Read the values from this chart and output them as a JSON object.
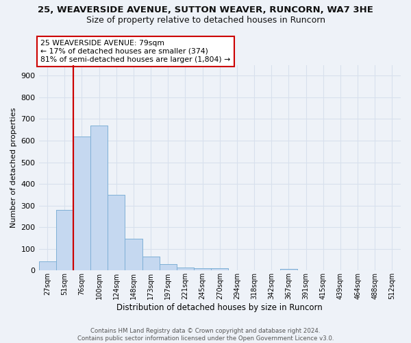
{
  "title_line1": "25, WEAVERSIDE AVENUE, SUTTON WEAVER, RUNCORN, WA7 3HE",
  "title_line2": "Size of property relative to detached houses in Runcorn",
  "xlabel": "Distribution of detached houses by size in Runcorn",
  "ylabel": "Number of detached properties",
  "bar_color": "#c5d8f0",
  "bar_edge_color": "#7aadd4",
  "property_line_color": "#cc0000",
  "annotation_text": "25 WEAVERSIDE AVENUE: 79sqm\n← 17% of detached houses are smaller (374)\n81% of semi-detached houses are larger (1,804) →",
  "annotation_box_color": "white",
  "annotation_border_color": "#cc0000",
  "categories": [
    "27sqm",
    "51sqm",
    "76sqm",
    "100sqm",
    "124sqm",
    "148sqm",
    "173sqm",
    "197sqm",
    "221sqm",
    "245sqm",
    "270sqm",
    "294sqm",
    "318sqm",
    "342sqm",
    "367sqm",
    "391sqm",
    "415sqm",
    "439sqm",
    "464sqm",
    "488sqm",
    "512sqm"
  ],
  "values": [
    42,
    280,
    620,
    670,
    348,
    148,
    65,
    28,
    14,
    12,
    10,
    0,
    0,
    0,
    8,
    0,
    0,
    0,
    0,
    0,
    0
  ],
  "ylim": [
    0,
    950
  ],
  "yticks": [
    0,
    100,
    200,
    300,
    400,
    500,
    600,
    700,
    800,
    900
  ],
  "bg_color": "#eef2f8",
  "grid_color": "#d8e0ed",
  "footer_text": "Contains HM Land Registry data © Crown copyright and database right 2024.\nContains public sector information licensed under the Open Government Licence v3.0.",
  "title_fontsize": 9.5,
  "subtitle_fontsize": 9,
  "bar_width": 1.0,
  "property_bin_index": 2
}
